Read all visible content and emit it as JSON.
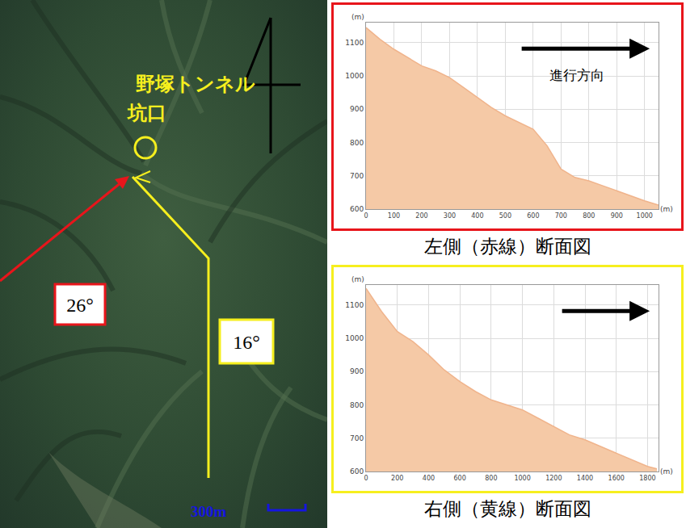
{
  "chart_data": [
    {
      "type": "area",
      "title": "左側（赤線）断面図",
      "xlabel": "(m)",
      "ylabel": "(m)",
      "annotations": [
        "進行方向"
      ],
      "x": [
        0,
        50,
        100,
        150,
        200,
        250,
        300,
        350,
        400,
        450,
        500,
        550,
        600,
        650,
        700,
        750,
        800,
        850,
        900,
        950,
        1000,
        1050
      ],
      "values": [
        1145,
        1110,
        1080,
        1055,
        1030,
        1015,
        995,
        965,
        935,
        905,
        880,
        860,
        840,
        790,
        720,
        695,
        685,
        670,
        655,
        640,
        625,
        612
      ],
      "color": "#f5c9a6",
      "xlim": [
        0,
        1050
      ],
      "xticks": [
        0,
        100,
        200,
        300,
        400,
        500,
        600,
        700,
        800,
        900,
        1000
      ],
      "ylim": [
        600,
        1160
      ],
      "yticks": [
        600,
        700,
        800,
        900,
        1000,
        1100
      ],
      "grid": true
    },
    {
      "type": "area",
      "title": "右側（黄線）断面図",
      "xlabel": "(m)",
      "ylabel": "(m)",
      "annotations": [],
      "x": [
        0,
        100,
        200,
        300,
        400,
        500,
        600,
        700,
        800,
        900,
        1000,
        1100,
        1200,
        1300,
        1400,
        1500,
        1600,
        1700,
        1800,
        1860
      ],
      "values": [
        1150,
        1080,
        1020,
        990,
        950,
        905,
        870,
        840,
        815,
        800,
        785,
        760,
        735,
        710,
        695,
        675,
        655,
        635,
        615,
        608
      ],
      "color": "#f5c9a6",
      "xlim": [
        0,
        1870
      ],
      "xticks": [
        0,
        200,
        400,
        600,
        800,
        1000,
        1200,
        1400,
        1600,
        1800
      ],
      "ylim": [
        600,
        1160
      ],
      "yticks": [
        600,
        700,
        800,
        900,
        1000,
        1100
      ],
      "grid": true
    }
  ],
  "map": {
    "portal_label": [
      "野塚トンネル",
      "坑口"
    ],
    "red_angle": "26°",
    "yellow_angle": "16°",
    "scale": "300m"
  }
}
